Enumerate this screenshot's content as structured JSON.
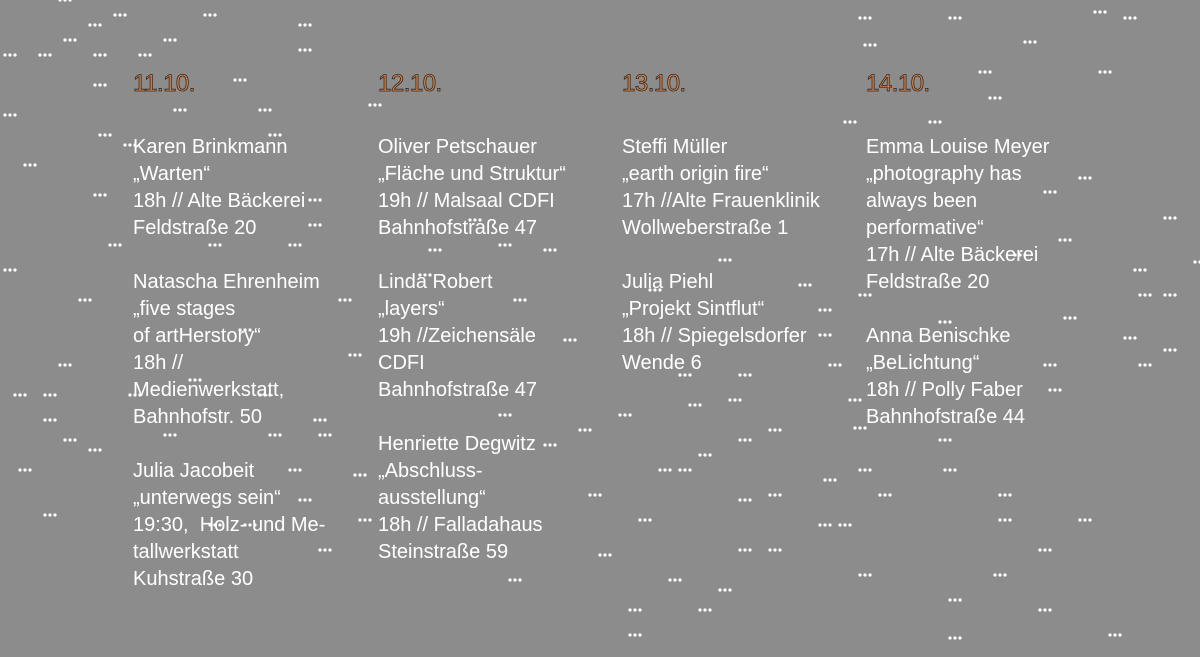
{
  "columns": [
    {
      "date": "11.10.",
      "events": [
        {
          "lines": [
            "Karen Brinkmann",
            "„Warten“",
            "18h // Alte Bäckerei",
            "Feldstraße 20"
          ]
        },
        {
          "lines": [
            "Natascha Ehrenheim",
            "„five stages",
            "of artHerstory“",
            "18h //",
            "Medienwerkstatt,",
            "Bahnhofstr. 50"
          ]
        },
        {
          "lines": [
            "Julia Jacobeit",
            "„unterwegs sein“",
            "19:30,  Holz- und Me-",
            "tallwerkstatt",
            "Kuhstraße 30"
          ]
        }
      ]
    },
    {
      "date": "12.10.",
      "events": [
        {
          "lines": [
            "Oliver Petschauer",
            "„Fläche und Struktur“",
            "19h // Malsaal CDFI",
            "Bahnhofstraße 47"
          ]
        },
        {
          "lines": [
            "Linda Robert",
            "„layers“",
            "19h //Zeichensäle",
            "CDFI",
            "Bahnhofstraße 47"
          ]
        },
        {
          "lines": [
            "Henriette Degwitz",
            "„Abschluss-",
            "ausstellung“",
            "18h // Falladahaus",
            "Steinstraße 59"
          ]
        }
      ]
    },
    {
      "date": "13.10.",
      "events": [
        {
          "lines": [
            "Steffi Müller",
            "„earth origin fire“",
            "17h //Alte Frauenklinik",
            "Wollweberstraße 1"
          ]
        },
        {
          "lines": [
            "Julia Piehl",
            "„Projekt Sintflut“",
            "18h // Spiegelsdorfer",
            "Wende 6"
          ]
        }
      ]
    },
    {
      "date": "14.10.",
      "events": [
        {
          "lines": [
            "Emma Louise Meyer",
            "„photography has",
            "always been",
            "performative“",
            "17h // Alte Bäckerei",
            "Feldstraße 20"
          ]
        },
        {
          "lines": [
            "Anna Benischke",
            "„BeLichtung“",
            "18h // Polly Faber",
            "Bahnhofstraße 44"
          ]
        }
      ]
    }
  ]
}
